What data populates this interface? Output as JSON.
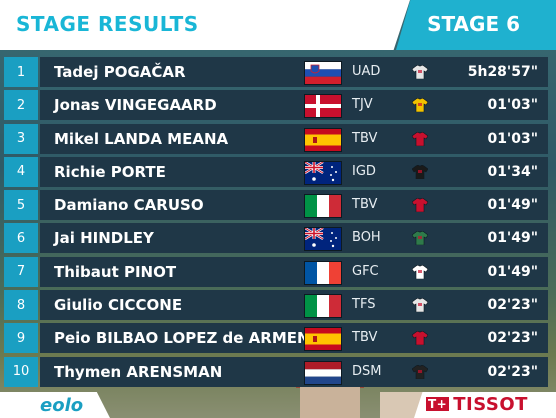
{
  "header": {
    "title": "STAGE RESULTS",
    "stage": "STAGE 6"
  },
  "results": [
    {
      "rank": "1",
      "name": "Tadej POGAČAR",
      "team": "UAD",
      "time": "5h28'57\"",
      "flag": "slovenia",
      "jersey_color": "#e6e6e6"
    },
    {
      "rank": "2",
      "name": "Jonas VINGEGAARD",
      "team": "TJV",
      "time": "01'03\"",
      "flag": "denmark",
      "jersey_color": "#f2c200"
    },
    {
      "rank": "3",
      "name": "Mikel LANDA MEANA",
      "team": "TBV",
      "time": "01'03\"",
      "flag": "spain",
      "jersey_color": "#c8102e"
    },
    {
      "rank": "4",
      "name": "Richie PORTE",
      "team": "IGD",
      "time": "01'34\"",
      "flag": "australia",
      "jersey_color": "#1a1a1a"
    },
    {
      "rank": "5",
      "name": "Damiano CARUSO",
      "team": "TBV",
      "time": "01'49\"",
      "flag": "italy",
      "jersey_color": "#c8102e"
    },
    {
      "rank": "6",
      "name": "Jai HINDLEY",
      "team": "BOH",
      "time": "01'49\"",
      "flag": "australia",
      "jersey_color": "#2f7a4a"
    },
    {
      "rank": "7",
      "name": "Thibaut PINOT",
      "team": "GFC",
      "time": "01'49\"",
      "flag": "france",
      "jersey_color": "#ffffff"
    },
    {
      "rank": "8",
      "name": "Giulio CICCONE",
      "team": "TFS",
      "time": "02'23\"",
      "flag": "italy",
      "jersey_color": "#e6e6e6"
    },
    {
      "rank": "9",
      "name": "Peio BILBAO LOPEZ de ARMENTIA",
      "team": "TBV",
      "time": "02'23\"",
      "flag": "spain",
      "jersey_color": "#c8102e"
    },
    {
      "rank": "10",
      "name": "Thymen ARENSMAN",
      "team": "DSM",
      "time": "02'23\"",
      "flag": "netherlands",
      "jersey_color": "#222222"
    }
  ],
  "footer": {
    "left_logo": "eolo",
    "right_logo": "TISSOT"
  }
}
